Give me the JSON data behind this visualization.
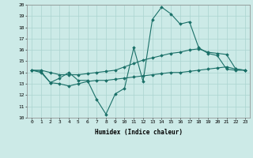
{
  "xlabel": "Humidex (Indice chaleur)",
  "bg_color": "#cceae7",
  "grid_color": "#aad4d0",
  "line_color": "#1a7068",
  "xlim": [
    -0.5,
    23.5
  ],
  "ylim": [
    10,
    20
  ],
  "xticks": [
    0,
    1,
    2,
    3,
    4,
    5,
    6,
    7,
    8,
    9,
    10,
    11,
    12,
    13,
    14,
    15,
    16,
    17,
    18,
    19,
    20,
    21,
    22,
    23
  ],
  "yticks": [
    10,
    11,
    12,
    13,
    14,
    15,
    16,
    17,
    18,
    19,
    20
  ],
  "series": [
    [
      14.2,
      14.0,
      13.1,
      13.5,
      14.0,
      13.3,
      13.3,
      11.6,
      10.3,
      12.1,
      12.6,
      16.2,
      13.2,
      18.7,
      19.8,
      19.2,
      18.3,
      18.5,
      16.2,
      15.7,
      15.5,
      14.3,
      14.2,
      14.2
    ],
    [
      14.2,
      14.2,
      14.0,
      13.8,
      13.8,
      13.8,
      13.9,
      14.0,
      14.1,
      14.2,
      14.5,
      14.8,
      15.1,
      15.3,
      15.5,
      15.7,
      15.8,
      16.0,
      16.1,
      15.8,
      15.7,
      15.6,
      14.3,
      14.2
    ],
    [
      14.2,
      14.1,
      13.1,
      13.0,
      12.8,
      13.0,
      13.2,
      13.3,
      13.3,
      13.4,
      13.5,
      13.6,
      13.7,
      13.8,
      13.9,
      14.0,
      14.0,
      14.1,
      14.2,
      14.3,
      14.4,
      14.5,
      14.3,
      14.2
    ]
  ]
}
